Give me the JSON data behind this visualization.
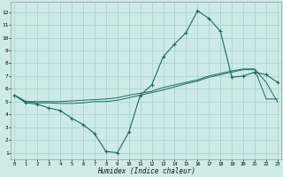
{
  "xlabel": "Humidex (Indice chaleur)",
  "x_ticks": [
    0,
    1,
    2,
    3,
    4,
    5,
    6,
    7,
    8,
    9,
    10,
    11,
    12,
    13,
    14,
    15,
    16,
    17,
    18,
    19,
    20,
    21,
    22,
    23
  ],
  "y_ticks": [
    1,
    2,
    3,
    4,
    5,
    6,
    7,
    8,
    9,
    10,
    11,
    12
  ],
  "xlim": [
    -0.3,
    23.3
  ],
  "ylim": [
    0.5,
    12.8
  ],
  "bg_color": "#cdeae8",
  "grid_color": "#aad4d0",
  "line_color": "#1a6b5a",
  "line1_x": [
    0,
    1,
    2,
    3,
    4,
    5,
    6,
    7,
    8,
    9,
    10,
    11,
    12,
    13,
    14,
    15,
    16,
    17,
    18,
    19,
    20,
    21,
    22,
    23
  ],
  "line1_y": [
    5.5,
    4.9,
    4.8,
    4.5,
    4.3,
    3.7,
    3.2,
    2.5,
    1.1,
    1.0,
    2.6,
    5.5,
    6.3,
    8.5,
    9.5,
    10.4,
    12.1,
    11.5,
    10.5,
    6.9,
    7.0,
    7.3,
    7.1,
    6.5
  ],
  "line2_x": [
    0,
    1,
    2,
    3,
    4,
    5,
    6,
    7,
    8,
    9,
    10,
    11,
    12,
    13,
    14,
    15,
    16,
    17,
    18,
    19,
    20,
    21,
    22,
    23
  ],
  "line2_y": [
    5.5,
    5.0,
    5.0,
    5.0,
    5.0,
    5.05,
    5.1,
    5.15,
    5.2,
    5.3,
    5.5,
    5.65,
    5.8,
    6.1,
    6.3,
    6.5,
    6.7,
    7.0,
    7.2,
    7.4,
    7.55,
    7.55,
    6.5,
    4.95
  ],
  "line3_x": [
    0,
    1,
    2,
    3,
    4,
    5,
    6,
    7,
    8,
    9,
    10,
    11,
    12,
    13,
    14,
    15,
    16,
    17,
    18,
    19,
    20,
    21,
    22,
    23
  ],
  "line3_y": [
    5.5,
    5.0,
    4.9,
    4.9,
    4.85,
    4.85,
    4.9,
    5.0,
    5.0,
    5.1,
    5.3,
    5.5,
    5.7,
    5.9,
    6.15,
    6.4,
    6.6,
    6.9,
    7.1,
    7.3,
    7.5,
    7.5,
    5.2,
    5.2
  ]
}
